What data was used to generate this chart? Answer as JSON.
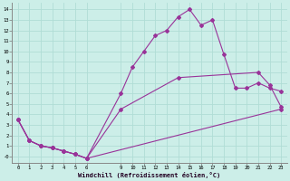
{
  "xlabel": "Windchill (Refroidissement éolien,°C)",
  "bg_color": "#cceee8",
  "grid_color": "#b0ddd5",
  "line_color": "#993399",
  "line1_x": [
    0,
    1,
    2,
    3,
    4,
    5,
    6,
    9,
    10,
    11,
    12,
    13,
    14,
    15,
    16,
    17,
    18,
    19,
    20,
    21,
    22,
    23
  ],
  "line1_y": [
    3.5,
    1.5,
    1.0,
    0.8,
    0.5,
    0.2,
    -0.2,
    6.0,
    8.5,
    10.0,
    11.5,
    12.0,
    13.3,
    14.0,
    12.5,
    13.0,
    9.7,
    6.5,
    6.5,
    7.0,
    6.5,
    6.2
  ],
  "line2_x": [
    0,
    1,
    2,
    3,
    4,
    5,
    6,
    9,
    14,
    21,
    22,
    23
  ],
  "line2_y": [
    3.5,
    1.5,
    1.0,
    0.8,
    0.5,
    0.2,
    -0.2,
    4.5,
    7.5,
    8.0,
    6.8,
    4.7
  ],
  "line3_x": [
    0,
    1,
    2,
    3,
    4,
    5,
    6,
    23
  ],
  "line3_y": [
    3.5,
    1.5,
    1.0,
    0.8,
    0.5,
    0.2,
    -0.2,
    4.5
  ],
  "xtick_positions": [
    0,
    1,
    2,
    3,
    4,
    5,
    6,
    9,
    10,
    11,
    12,
    13,
    14,
    15,
    16,
    17,
    18,
    19,
    20,
    21,
    22,
    23
  ],
  "xtick_labels": [
    "0",
    "1",
    "2",
    "3",
    "4",
    "5",
    "6",
    "9",
    "10",
    "11",
    "12",
    "13",
    "14",
    "15",
    "16",
    "17",
    "18",
    "19",
    "20",
    "21",
    "22",
    "23"
  ],
  "ytick_positions": [
    0,
    1,
    2,
    3,
    4,
    5,
    6,
    7,
    8,
    9,
    10,
    11,
    12,
    13,
    14
  ],
  "ytick_labels": [
    "-0",
    "1",
    "2",
    "3",
    "4",
    "5",
    "6",
    "7",
    "8",
    "9",
    "10",
    "11",
    "12",
    "13",
    "14"
  ],
  "ylim": [
    -0.6,
    14.6
  ],
  "xlim": [
    -0.5,
    23.5
  ],
  "figsize": [
    3.2,
    2.0
  ],
  "dpi": 100
}
